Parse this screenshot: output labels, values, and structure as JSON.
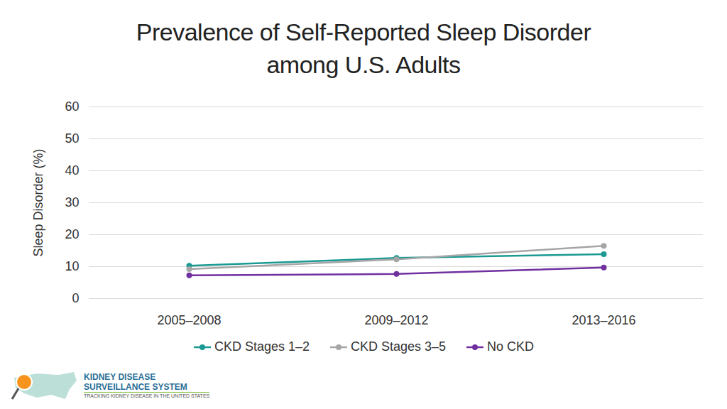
{
  "chart_data": {
    "type": "line",
    "title": "Prevalence of Self-Reported Sleep Disorder among U.S. Adults",
    "y_label": "Sleep Disorder (%)",
    "categories": [
      "2005–2008",
      "2009–2012",
      "2013–2016"
    ],
    "series": [
      {
        "name": "CKD Stages 1–2",
        "color": "#1a9a93",
        "values": [
          10.3,
          12.7,
          13.9
        ]
      },
      {
        "name": "CKD Stages 3–5",
        "color": "#a6a6a6",
        "values": [
          9.2,
          12.3,
          16.5
        ]
      },
      {
        "name": "No CKD",
        "color": "#7030a0",
        "values": [
          7.3,
          7.7,
          9.7
        ]
      }
    ],
    "ylim": [
      0,
      60
    ],
    "yticks": [
      0,
      10,
      20,
      30,
      40,
      50,
      60
    ],
    "grid": true,
    "legend": "bottom",
    "marker": "circle",
    "line_style": "solid",
    "annotations": [
      "KIDNEY DISEASE",
      "SURVEILLANCE SYSTEM",
      "TRACKING KIDNEY DISEASE IN THE UNITED STATES"
    ]
  }
}
